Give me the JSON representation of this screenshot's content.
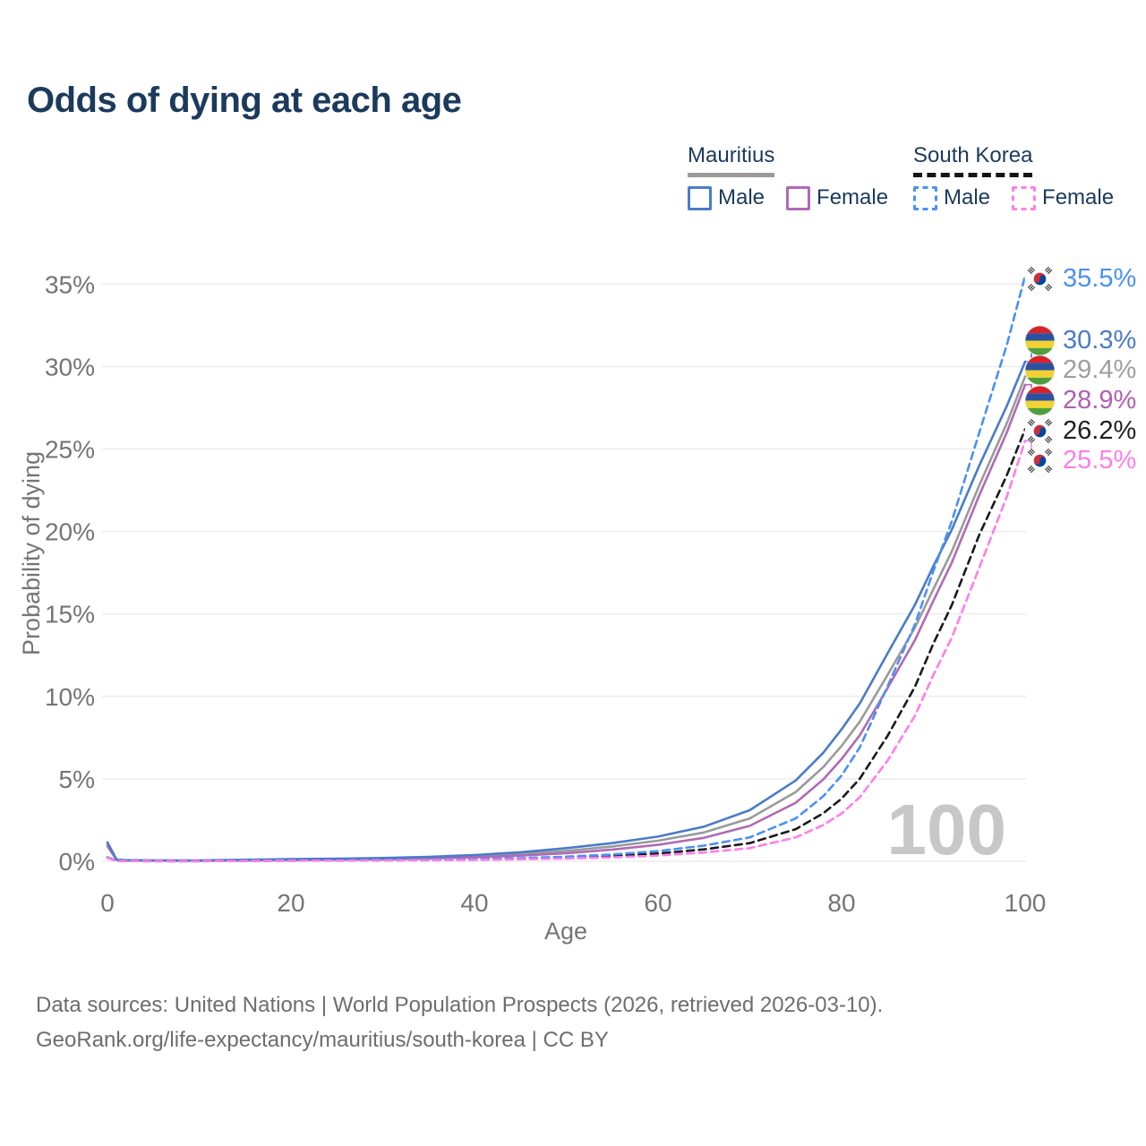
{
  "title": "Odds of dying at each age",
  "legend": {
    "mauritius": {
      "name": "Mauritius",
      "male_label": "Male",
      "female_label": "Female"
    },
    "south_korea": {
      "name": "South Korea",
      "male_label": "Male",
      "female_label": "Female"
    }
  },
  "colors": {
    "heading_text": "#1b3a5c",
    "axis_text": "#757575",
    "grid_line": "#ececec",
    "watermark": "#c7c7c7",
    "mauritius_male": "#4a7bc9",
    "mauritius_female": "#b06ab5",
    "mauritius_all": "#9a9a9a",
    "south_korea_male": "#4a90f5",
    "south_korea_female": "#ff7de9",
    "south_korea_all": "#1a1a1a"
  },
  "chart_data": {
    "type": "line",
    "title": "Odds of dying at each age",
    "xlabel": "Age",
    "ylabel": "Probability of dying",
    "xlim": [
      0,
      100
    ],
    "ylim": [
      0,
      36.5
    ],
    "x_ticks": [
      0,
      20,
      40,
      60,
      80,
      100
    ],
    "y_tick_values": [
      0,
      5,
      10,
      15,
      20,
      25,
      30,
      35
    ],
    "y_tick_labels": [
      "0%",
      "5%",
      "10%",
      "15%",
      "20%",
      "25%",
      "30%",
      "35%"
    ],
    "grid": "horizontal",
    "legend_position": "top-right",
    "watermark": "100",
    "x": [
      0,
      1,
      2,
      5,
      10,
      15,
      20,
      25,
      30,
      35,
      40,
      45,
      50,
      55,
      60,
      65,
      70,
      75,
      78,
      80,
      82,
      85,
      88,
      90,
      92,
      95,
      98,
      100
    ],
    "series": [
      {
        "name": "Mauritius All",
        "color": "#9a9a9a",
        "dash": false,
        "end_label": "29.4%",
        "values": [
          1.03,
          0.09,
          0.06,
          0.045,
          0.04,
          0.07,
          0.1,
          0.13,
          0.16,
          0.22,
          0.31,
          0.44,
          0.63,
          0.9,
          1.25,
          1.75,
          2.6,
          4.2,
          5.71,
          7.0,
          8.48,
          11.3,
          14.18,
          16.5,
          18.78,
          22.8,
          26.56,
          29.4
        ]
      },
      {
        "name": "Mauritius Female",
        "color": "#b06ab5",
        "dash": false,
        "end_label": "28.9%",
        "values": [
          0.92,
          0.08,
          0.05,
          0.04,
          0.035,
          0.05,
          0.07,
          0.09,
          0.12,
          0.17,
          0.24,
          0.34,
          0.49,
          0.71,
          1.0,
          1.42,
          2.15,
          3.55,
          4.96,
          6.2,
          7.66,
          10.5,
          13.42,
          15.8,
          18.1,
          22.2,
          26.0,
          28.9
        ]
      },
      {
        "name": "Mauritius Male",
        "color": "#4a7bc9",
        "dash": false,
        "end_label": "30.3%",
        "values": [
          1.15,
          0.1,
          0.07,
          0.05,
          0.05,
          0.09,
          0.13,
          0.16,
          0.2,
          0.27,
          0.38,
          0.55,
          0.8,
          1.1,
          1.5,
          2.1,
          3.1,
          4.9,
          6.58,
          8.0,
          9.59,
          12.6,
          15.56,
          17.9,
          20.1,
          24.0,
          27.6,
          30.3
        ]
      },
      {
        "name": "South Korea All",
        "color": "#1a1a1a",
        "dash": true,
        "end_label": "26.2%",
        "values": [
          0.22,
          0.025,
          0.018,
          0.01,
          0.01,
          0.02,
          0.04,
          0.05,
          0.06,
          0.08,
          0.11,
          0.16,
          0.23,
          0.33,
          0.47,
          0.72,
          1.1,
          1.95,
          2.91,
          3.8,
          5.02,
          7.6,
          10.59,
          13.2,
          15.52,
          19.8,
          23.4,
          26.2
        ]
      },
      {
        "name": "South Korea Male",
        "color": "#4a90f5",
        "dash": true,
        "end_label": "35.5%",
        "values": [
          0.25,
          0.03,
          0.02,
          0.012,
          0.012,
          0.03,
          0.05,
          0.06,
          0.07,
          0.09,
          0.13,
          0.19,
          0.28,
          0.41,
          0.62,
          0.95,
          1.45,
          2.6,
          3.94,
          5.2,
          6.92,
          10.6,
          14.37,
          17.6,
          20.6,
          26.0,
          31.3,
          35.5
        ]
      },
      {
        "name": "South Korea Female",
        "color": "#ff7de9",
        "dash": true,
        "end_label": "25.5%",
        "values": [
          0.2,
          0.02,
          0.015,
          0.01,
          0.01,
          0.02,
          0.03,
          0.04,
          0.05,
          0.06,
          0.08,
          0.12,
          0.17,
          0.24,
          0.35,
          0.53,
          0.8,
          1.45,
          2.2,
          2.9,
          3.9,
          6.1,
          8.83,
          11.3,
          13.55,
          17.8,
          22.1,
          25.5
        ]
      }
    ]
  },
  "end_labels": [
    {
      "value": "35.5%",
      "flag": "kr",
      "color": "#4a90f5"
    },
    {
      "value": "30.3%",
      "flag": "mu",
      "color": "#4a7bc9"
    },
    {
      "value": "29.4%",
      "flag": "mu",
      "color": "#9e9e9e"
    },
    {
      "value": "28.9%",
      "flag": "mu",
      "color": "#b05fb5"
    },
    {
      "value": "26.2%",
      "flag": "kr",
      "color": "#1f1f1f"
    },
    {
      "value": "25.5%",
      "flag": "kr",
      "color": "#ff7de9"
    }
  ],
  "footer": {
    "line1": "Data sources: United Nations | World Population Prospects (2026, retrieved 2026-03-10).",
    "line2": "GeoRank.org/life-expectancy/mauritius/south-korea | CC BY"
  }
}
